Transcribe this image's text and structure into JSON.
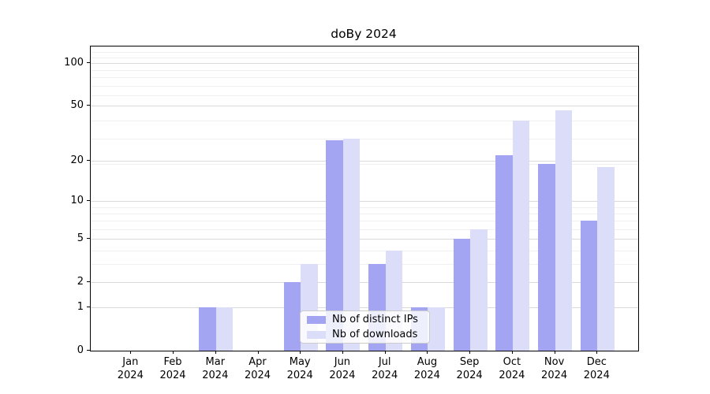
{
  "chart_data": {
    "type": "bar",
    "title": "doBy 2024",
    "categories": [
      "Jan 2024",
      "Feb 2024",
      "Mar 2024",
      "Apr 2024",
      "May 2024",
      "Jun 2024",
      "Jul 2024",
      "Aug 2024",
      "Sep 2024",
      "Oct 2024",
      "Nov 2024",
      "Dec 2024"
    ],
    "series": [
      {
        "name": "Nb of distinct IPs",
        "color": "#a3a5f2",
        "values": [
          0,
          0,
          1,
          0,
          2,
          28,
          3,
          1,
          5,
          22,
          19,
          7
        ]
      },
      {
        "name": "Nb of downloads",
        "color": "#dcddf9",
        "values": [
          0,
          0,
          1,
          0,
          3,
          29,
          4,
          1,
          6,
          39,
          46,
          18
        ]
      }
    ],
    "y_ticks": [
      0,
      1,
      2,
      5,
      10,
      20,
      50,
      100
    ],
    "y_scale": "log10(1+value)",
    "y_axis_max": 130,
    "xlabel": "",
    "ylabel": "",
    "grid": "horizontal major+minor",
    "legend_position": "lower center",
    "colors": {
      "grid_major": "#d9d9d9",
      "grid_minor": "#f0f0f3",
      "axis": "#000000",
      "legend_border": "#cccccc"
    }
  }
}
